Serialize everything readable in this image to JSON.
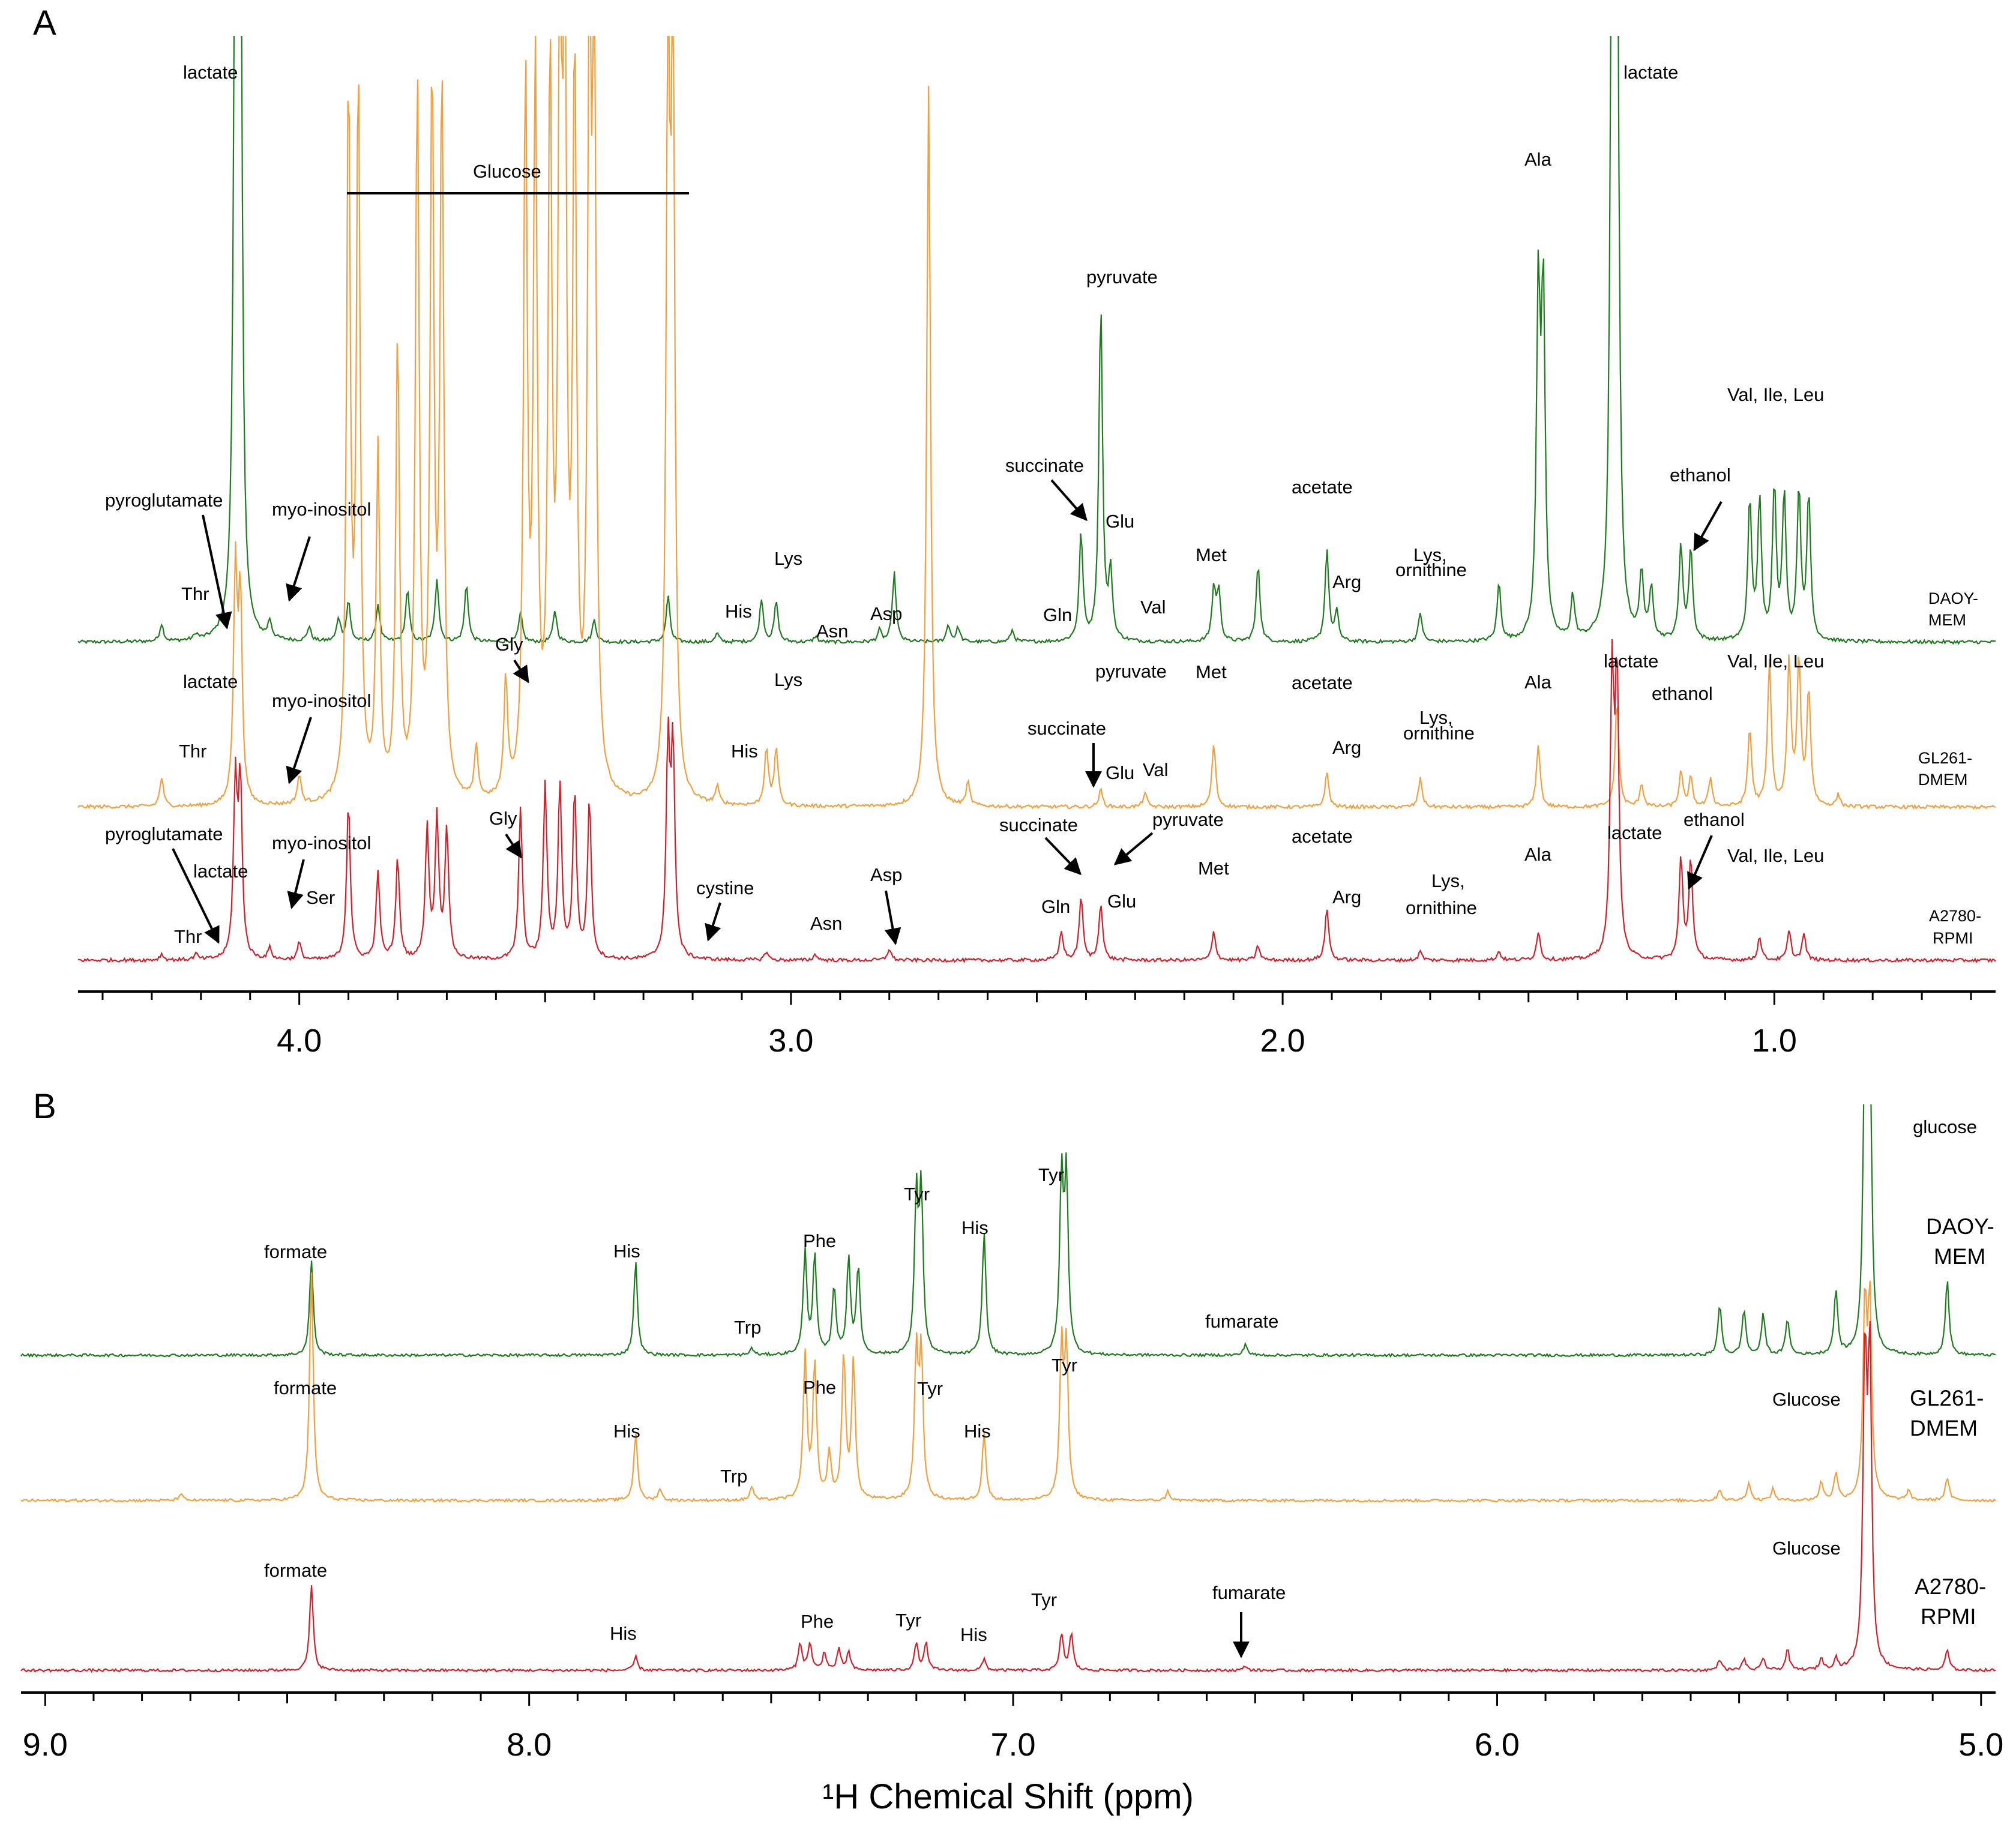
{
  "panels": {
    "a_label": "A",
    "b_label": "B"
  },
  "colors": {
    "DAOY-MEM": "#1e7b1e",
    "GL261-DMEM": "#f0a040",
    "A2780-RPMI": "#d0202a"
  },
  "chart_data": [
    {
      "type": "line",
      "panel": "A",
      "x_axis": {
        "range": [
          4.45,
          0.55
        ],
        "reversed": true,
        "tick_labels": [
          "4.0",
          "3.0",
          "2.0",
          "1.0"
        ],
        "tick_values": [
          4.0,
          3.0,
          2.0,
          1.0
        ],
        "minor_step": 0.1
      },
      "series": [
        {
          "name": "DAOY-MEM",
          "label_lines": [
            "DAOY-",
            "MEM"
          ],
          "color": "#1e7b1e",
          "baseline": 0,
          "peaks": [
            {
              "x": 4.28,
              "y": 0.06
            },
            {
              "x": 4.21,
              "y": 0.02
            },
            {
              "x": 4.13,
              "y": 2.5
            },
            {
              "x": 4.12,
              "y": 2.5
            },
            {
              "x": 4.06,
              "y": 0.06
            },
            {
              "x": 3.98,
              "y": 0.05
            },
            {
              "x": 3.92,
              "y": 0.08
            },
            {
              "x": 3.9,
              "y": 0.14
            },
            {
              "x": 3.84,
              "y": 0.13
            },
            {
              "x": 3.78,
              "y": 0.18
            },
            {
              "x": 3.72,
              "y": 0.22
            },
            {
              "x": 3.66,
              "y": 0.2
            },
            {
              "x": 3.55,
              "y": 0.1
            },
            {
              "x": 3.48,
              "y": 0.11
            },
            {
              "x": 3.4,
              "y": 0.08
            },
            {
              "x": 3.25,
              "y": 0.16
            },
            {
              "x": 3.15,
              "y": 0.03
            },
            {
              "x": 3.06,
              "y": 0.15
            },
            {
              "x": 3.03,
              "y": 0.14
            },
            {
              "x": 2.95,
              "y": 0.02
            },
            {
              "x": 2.82,
              "y": 0.04
            },
            {
              "x": 2.79,
              "y": 0.24
            },
            {
              "x": 2.68,
              "y": 0.06
            },
            {
              "x": 2.66,
              "y": 0.05
            },
            {
              "x": 2.55,
              "y": 0.04
            },
            {
              "x": 2.41,
              "y": 0.37
            },
            {
              "x": 2.37,
              "y": 1.17
            },
            {
              "x": 2.35,
              "y": 0.23
            },
            {
              "x": 2.14,
              "y": 0.18
            },
            {
              "x": 2.13,
              "y": 0.17
            },
            {
              "x": 2.05,
              "y": 0.27
            },
            {
              "x": 1.91,
              "y": 0.32
            },
            {
              "x": 1.89,
              "y": 0.1
            },
            {
              "x": 1.72,
              "y": 0.1
            },
            {
              "x": 1.56,
              "y": 0.2
            },
            {
              "x": 1.48,
              "y": 1.18
            },
            {
              "x": 1.47,
              "y": 1.18
            },
            {
              "x": 1.41,
              "y": 0.15
            },
            {
              "x": 1.33,
              "y": 2.5
            },
            {
              "x": 1.32,
              "y": 2.5
            },
            {
              "x": 1.27,
              "y": 0.23
            },
            {
              "x": 1.25,
              "y": 0.18
            },
            {
              "x": 1.19,
              "y": 0.33
            },
            {
              "x": 1.17,
              "y": 0.32
            },
            {
              "x": 1.05,
              "y": 0.48
            },
            {
              "x": 1.03,
              "y": 0.48
            },
            {
              "x": 1.0,
              "y": 0.53
            },
            {
              "x": 0.98,
              "y": 0.5
            },
            {
              "x": 0.95,
              "y": 0.52
            },
            {
              "x": 0.93,
              "y": 0.5
            }
          ]
        },
        {
          "name": "GL261-DMEM",
          "label_lines": [
            "GL261-",
            "DMEM"
          ],
          "color": "#f0a040",
          "baseline": 0,
          "peaks": [
            {
              "x": 4.28,
              "y": 0.1
            },
            {
              "x": 4.13,
              "y": 0.8
            },
            {
              "x": 4.12,
              "y": 0.7
            },
            {
              "x": 4.0,
              "y": 0.1
            },
            {
              "x": 3.9,
              "y": 2.5
            },
            {
              "x": 3.88,
              "y": 2.5
            },
            {
              "x": 3.84,
              "y": 1.2
            },
            {
              "x": 3.8,
              "y": 1.6
            },
            {
              "x": 3.76,
              "y": 2.5
            },
            {
              "x": 3.73,
              "y": 2.5
            },
            {
              "x": 3.71,
              "y": 2.5
            },
            {
              "x": 3.64,
              "y": 0.18
            },
            {
              "x": 3.58,
              "y": 0.4
            },
            {
              "x": 3.54,
              "y": 2.5
            },
            {
              "x": 3.52,
              "y": 2.5
            },
            {
              "x": 3.49,
              "y": 2.5
            },
            {
              "x": 3.47,
              "y": 2.5
            },
            {
              "x": 3.46,
              "y": 2.5
            },
            {
              "x": 3.44,
              "y": 2.5
            },
            {
              "x": 3.41,
              "y": 2.5
            },
            {
              "x": 3.4,
              "y": 2.5
            },
            {
              "x": 3.25,
              "y": 2.5
            },
            {
              "x": 3.24,
              "y": 2.5
            },
            {
              "x": 3.15,
              "y": 0.06
            },
            {
              "x": 3.05,
              "y": 0.2
            },
            {
              "x": 3.03,
              "y": 0.2
            },
            {
              "x": 2.72,
              "y": 2.5
            },
            {
              "x": 2.64,
              "y": 0.08
            },
            {
              "x": 2.37,
              "y": 0.06
            },
            {
              "x": 2.28,
              "y": 0.05
            },
            {
              "x": 2.14,
              "y": 0.22
            },
            {
              "x": 1.91,
              "y": 0.12
            },
            {
              "x": 1.72,
              "y": 0.1
            },
            {
              "x": 1.48,
              "y": 0.22
            },
            {
              "x": 1.32,
              "y": 0.37
            },
            {
              "x": 1.27,
              "y": 0.08
            },
            {
              "x": 1.19,
              "y": 0.12
            },
            {
              "x": 1.17,
              "y": 0.1
            },
            {
              "x": 1.13,
              "y": 0.1
            },
            {
              "x": 1.05,
              "y": 0.27
            },
            {
              "x": 1.01,
              "y": 0.5
            },
            {
              "x": 0.97,
              "y": 0.5
            },
            {
              "x": 0.95,
              "y": 0.5
            },
            {
              "x": 0.93,
              "y": 0.4
            },
            {
              "x": 0.87,
              "y": 0.04
            }
          ]
        },
        {
          "name": "A2780-RPMI",
          "label_lines": [
            "A2780-",
            "RPMI"
          ],
          "color": "#d0202a",
          "baseline": 0,
          "peaks": [
            {
              "x": 4.28,
              "y": 0.02
            },
            {
              "x": 4.21,
              "y": 0.02
            },
            {
              "x": 4.13,
              "y": 0.6
            },
            {
              "x": 4.12,
              "y": 0.6
            },
            {
              "x": 4.06,
              "y": 0.04
            },
            {
              "x": 4.0,
              "y": 0.06
            },
            {
              "x": 3.9,
              "y": 0.55
            },
            {
              "x": 3.84,
              "y": 0.3
            },
            {
              "x": 3.8,
              "y": 0.35
            },
            {
              "x": 3.74,
              "y": 0.45
            },
            {
              "x": 3.72,
              "y": 0.48
            },
            {
              "x": 3.7,
              "y": 0.45
            },
            {
              "x": 3.55,
              "y": 0.52
            },
            {
              "x": 3.5,
              "y": 0.6
            },
            {
              "x": 3.47,
              "y": 0.6
            },
            {
              "x": 3.44,
              "y": 0.58
            },
            {
              "x": 3.41,
              "y": 0.55
            },
            {
              "x": 3.25,
              "y": 0.72
            },
            {
              "x": 3.24,
              "y": 0.72
            },
            {
              "x": 3.05,
              "y": 0.03
            },
            {
              "x": 2.95,
              "y": 0.02
            },
            {
              "x": 2.8,
              "y": 0.04
            },
            {
              "x": 2.45,
              "y": 0.1
            },
            {
              "x": 2.41,
              "y": 0.22
            },
            {
              "x": 2.37,
              "y": 0.2
            },
            {
              "x": 2.14,
              "y": 0.1
            },
            {
              "x": 2.05,
              "y": 0.05
            },
            {
              "x": 1.91,
              "y": 0.18
            },
            {
              "x": 1.72,
              "y": 0.03
            },
            {
              "x": 1.56,
              "y": 0.03
            },
            {
              "x": 1.48,
              "y": 0.1
            },
            {
              "x": 1.33,
              "y": 0.95
            },
            {
              "x": 1.32,
              "y": 0.95
            },
            {
              "x": 1.19,
              "y": 0.35
            },
            {
              "x": 1.17,
              "y": 0.35
            },
            {
              "x": 1.03,
              "y": 0.08
            },
            {
              "x": 0.97,
              "y": 0.1
            },
            {
              "x": 0.94,
              "y": 0.09
            }
          ]
        }
      ]
    },
    {
      "type": "line",
      "panel": "B",
      "x_axis": {
        "range": [
          9.05,
          4.97
        ],
        "reversed": true,
        "tick_labels": [
          "9.0",
          "8.0",
          "7.0",
          "6.0",
          "5.0"
        ],
        "tick_values": [
          9.0,
          8.0,
          7.0,
          6.0,
          5.0
        ],
        "minor_step": 0.1,
        "title": "¹H Chemical Shift (ppm)"
      },
      "series": [
        {
          "name": "DAOY-MEM",
          "label_lines": [
            "DAOY-",
            "MEM"
          ],
          "color": "#1e7b1e",
          "baseline": 0,
          "peaks": [
            {
              "x": 8.45,
              "y": 0.42
            },
            {
              "x": 7.78,
              "y": 0.41
            },
            {
              "x": 7.54,
              "y": 0.03
            },
            {
              "x": 7.43,
              "y": 0.45
            },
            {
              "x": 7.41,
              "y": 0.43
            },
            {
              "x": 7.37,
              "y": 0.3
            },
            {
              "x": 7.34,
              "y": 0.42
            },
            {
              "x": 7.32,
              "y": 0.38
            },
            {
              "x": 7.2,
              "y": 0.68
            },
            {
              "x": 7.19,
              "y": 0.7
            },
            {
              "x": 7.06,
              "y": 0.54
            },
            {
              "x": 6.9,
              "y": 0.76
            },
            {
              "x": 6.89,
              "y": 0.76
            },
            {
              "x": 6.52,
              "y": 0.05
            },
            {
              "x": 5.54,
              "y": 0.22
            },
            {
              "x": 5.49,
              "y": 0.2
            },
            {
              "x": 5.45,
              "y": 0.18
            },
            {
              "x": 5.4,
              "y": 0.16
            },
            {
              "x": 5.3,
              "y": 0.28
            },
            {
              "x": 5.24,
              "y": 1.3
            },
            {
              "x": 5.23,
              "y": 1.3
            },
            {
              "x": 5.07,
              "y": 0.33
            }
          ]
        },
        {
          "name": "GL261-DMEM",
          "label_lines": [
            "GL261-",
            "DMEM"
          ],
          "color": "#f0a040",
          "baseline": 0,
          "peaks": [
            {
              "x": 8.72,
              "y": 0.03
            },
            {
              "x": 8.45,
              "y": 1.0
            },
            {
              "x": 7.78,
              "y": 0.3
            },
            {
              "x": 7.73,
              "y": 0.05
            },
            {
              "x": 7.54,
              "y": 0.06
            },
            {
              "x": 7.43,
              "y": 0.63
            },
            {
              "x": 7.41,
              "y": 0.6
            },
            {
              "x": 7.38,
              "y": 0.2
            },
            {
              "x": 7.35,
              "y": 0.63
            },
            {
              "x": 7.33,
              "y": 0.6
            },
            {
              "x": 7.2,
              "y": 0.63
            },
            {
              "x": 7.19,
              "y": 0.63
            },
            {
              "x": 7.06,
              "y": 0.3
            },
            {
              "x": 6.9,
              "y": 0.65
            },
            {
              "x": 6.89,
              "y": 0.65
            },
            {
              "x": 6.68,
              "y": 0.04
            },
            {
              "x": 5.54,
              "y": 0.05
            },
            {
              "x": 5.48,
              "y": 0.08
            },
            {
              "x": 5.43,
              "y": 0.05
            },
            {
              "x": 5.33,
              "y": 0.08
            },
            {
              "x": 5.3,
              "y": 0.12
            },
            {
              "x": 5.24,
              "y": 0.85
            },
            {
              "x": 5.23,
              "y": 0.85
            },
            {
              "x": 5.15,
              "y": 0.04
            },
            {
              "x": 5.07,
              "y": 0.1
            }
          ]
        },
        {
          "name": "A2780-RPMI",
          "label_lines": [
            "A2780-",
            "RPMI"
          ],
          "color": "#d0202a",
          "baseline": 0,
          "peaks": [
            {
              "x": 8.45,
              "y": 0.37
            },
            {
              "x": 7.78,
              "y": 0.06
            },
            {
              "x": 7.44,
              "y": 0.12
            },
            {
              "x": 7.42,
              "y": 0.12
            },
            {
              "x": 7.39,
              "y": 0.08
            },
            {
              "x": 7.36,
              "y": 0.09
            },
            {
              "x": 7.34,
              "y": 0.08
            },
            {
              "x": 7.2,
              "y": 0.12
            },
            {
              "x": 7.18,
              "y": 0.12
            },
            {
              "x": 7.06,
              "y": 0.05
            },
            {
              "x": 6.9,
              "y": 0.16
            },
            {
              "x": 6.88,
              "y": 0.16
            },
            {
              "x": 6.52,
              "y": 0.02
            },
            {
              "x": 5.54,
              "y": 0.05
            },
            {
              "x": 5.49,
              "y": 0.05
            },
            {
              "x": 5.45,
              "y": 0.05
            },
            {
              "x": 5.4,
              "y": 0.09
            },
            {
              "x": 5.33,
              "y": 0.05
            },
            {
              "x": 5.3,
              "y": 0.05
            },
            {
              "x": 5.24,
              "y": 1.35
            },
            {
              "x": 5.23,
              "y": 1.35
            },
            {
              "x": 5.07,
              "y": 0.09
            }
          ]
        }
      ],
      "annotations": [
        {
          "text": "formate"
        },
        {
          "text": "His"
        },
        {
          "text": "Trp"
        },
        {
          "text": "Phe"
        },
        {
          "text": "Tyr"
        },
        {
          "text": "fumarate"
        },
        {
          "text": "glucose"
        },
        {
          "text": "Glucose"
        }
      ]
    }
  ],
  "annotations_a": [
    "lactate",
    "Glucose",
    "pyruvate",
    "Ala",
    "Val, Ile, Leu",
    "ethanol",
    "succinate",
    "Glu",
    "acetate",
    "pyroglutamate",
    "myo-inositol",
    "Thr",
    "Lys",
    "His",
    "Asn",
    "Asp",
    "Gln",
    "Val",
    "Met",
    "Arg",
    "Lys,",
    "ornithine",
    "Gly",
    "Ser",
    "cystine"
  ],
  "axis_title": "¹H Chemical Shift (ppm)"
}
